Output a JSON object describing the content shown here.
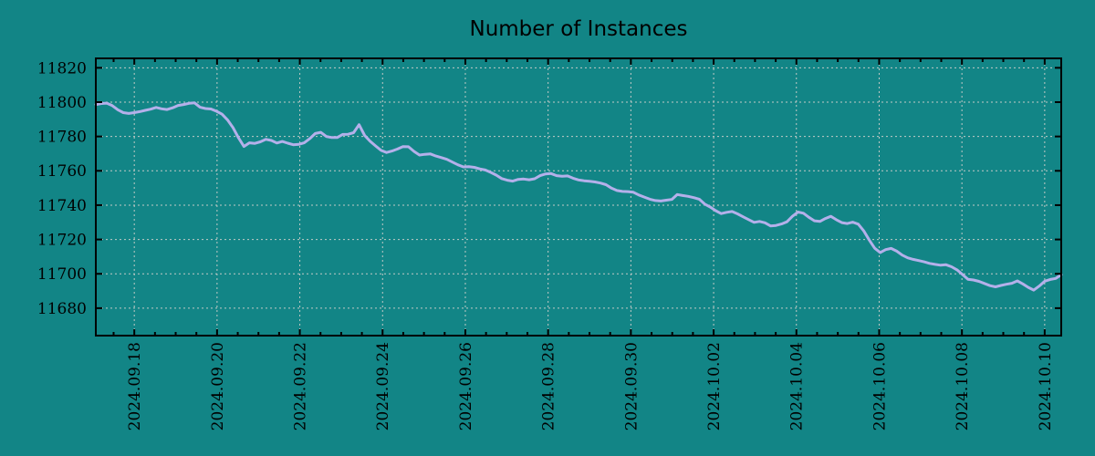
{
  "window": {
    "title": "Number of Instances"
  },
  "colors": {
    "background": "#128586",
    "line": "#b4b0ea",
    "grid": "#c2cac6",
    "axis": "#000000",
    "text": "#000000"
  },
  "chart_data": {
    "type": "line",
    "title": "Number of Instances",
    "xlabel": "",
    "ylabel": "",
    "grid": "dotted",
    "legend": false,
    "x_tick_labels": [
      "2024.09.18",
      "2024.09.20",
      "2024.09.22",
      "2024.09.24",
      "2024.09.26",
      "2024.09.28",
      "2024.09.30",
      "2024.10.02",
      "2024.10.04",
      "2024.10.06",
      "2024.10.08",
      "2024.10.10"
    ],
    "x_major_interval_days": 2,
    "x_minor_interval_days": 0.5,
    "x_pad_days_before_first_tick": 0.93,
    "x_pad_days_after_last_tick": 0.4,
    "y_tick_labels": [
      "11820",
      "11800",
      "11780",
      "11760",
      "11740",
      "11720",
      "11700",
      "11680"
    ],
    "y_tick_values": [
      11820,
      11800,
      11780,
      11760,
      11740,
      11720,
      11700,
      11680
    ],
    "ylim": [
      11664.0,
      11825.5
    ],
    "series": [
      {
        "name": "Number of Instances",
        "color": "#b4b0ea",
        "points_evenly_spaced_over_x_range": true,
        "values": [
          11798.6,
          11799.2,
          11799.4,
          11798.0,
          11795.6,
          11793.9,
          11793.4,
          11793.9,
          11794.5,
          11795.2,
          11795.9,
          11796.9,
          11796.1,
          11795.7,
          11796.7,
          11798.1,
          11798.6,
          11799.3,
          11799.6,
          11797.0,
          11796.3,
          11796.0,
          11794.7,
          11793.0,
          11789.7,
          11785.2,
          11779.3,
          11774.2,
          11776.3,
          11776.0,
          11776.9,
          11778.3,
          11777.7,
          11776.2,
          11777.1,
          11776.1,
          11775.2,
          11775.4,
          11776.3,
          11778.7,
          11781.7,
          11782.4,
          11780.0,
          11779.4,
          11779.4,
          11781.2,
          11781.3,
          11782.2,
          11786.9,
          11780.6,
          11777.2,
          11774.5,
          11771.9,
          11770.7,
          11771.5,
          11772.7,
          11774.1,
          11774.0,
          11771.3,
          11769.2,
          11769.6,
          11769.8,
          11768.6,
          11767.7,
          11766.7,
          11765.1,
          11763.5,
          11762.3,
          11762.4,
          11762.0,
          11761.1,
          11760.5,
          11759.1,
          11757.5,
          11755.5,
          11754.5,
          11754.0,
          11755.0,
          11755.2,
          11754.8,
          11755.4,
          11757.2,
          11758.2,
          11758.4,
          11757.2,
          11756.8,
          11757.0,
          11755.7,
          11754.7,
          11754.2,
          11753.9,
          11753.5,
          11752.9,
          11751.9,
          11749.9,
          11748.5,
          11748.0,
          11747.9,
          11747.5,
          11745.9,
          11744.7,
          11743.5,
          11742.7,
          11742.4,
          11742.9,
          11743.3,
          11746.2,
          11745.6,
          11745.1,
          11744.4,
          11743.5,
          11740.6,
          11738.9,
          11736.8,
          11735.1,
          11735.8,
          11736.3,
          11734.9,
          11733.2,
          11731.6,
          11730.0,
          11730.5,
          11729.7,
          11727.9,
          11728.2,
          11729.0,
          11730.3,
          11733.5,
          11736.0,
          11735.3,
          11732.9,
          11730.9,
          11730.5,
          11732.2,
          11733.5,
          11731.5,
          11729.8,
          11729.3,
          11730.1,
          11728.9,
          11725.0,
          11719.7,
          11714.9,
          11712.4,
          11714.1,
          11714.8,
          11713.2,
          11710.9,
          11709.3,
          11708.4,
          11707.7,
          11707.0,
          11706.1,
          11705.5,
          11705.0,
          11705.3,
          11704.1,
          11702.3,
          11699.6,
          11696.8,
          11696.4,
          11695.6,
          11694.4,
          11693.1,
          11692.4,
          11693.2,
          11693.9,
          11694.5,
          11695.9,
          11694.1,
          11692.1,
          11690.5,
          11692.9,
          11695.7,
          11696.7,
          11697.3,
          11699.5
        ]
      }
    ]
  }
}
